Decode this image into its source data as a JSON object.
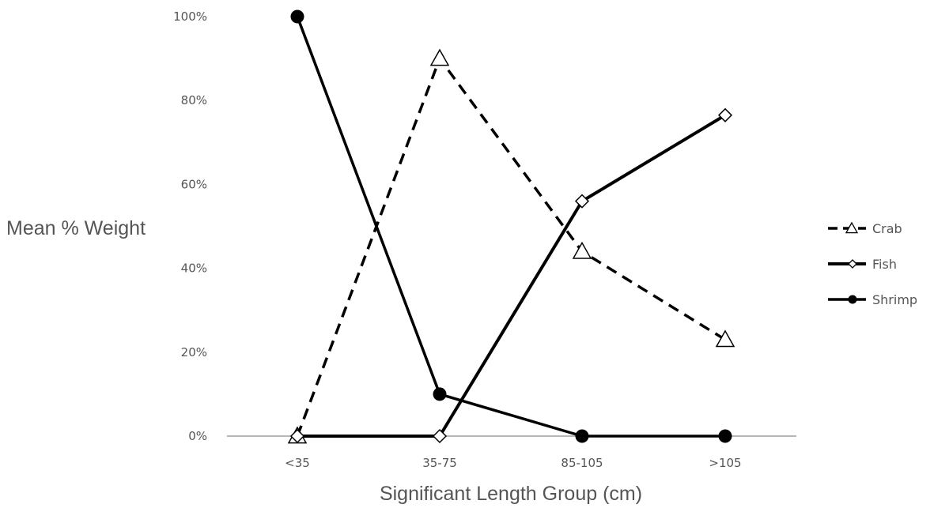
{
  "chart_data": {
    "type": "line",
    "title": "",
    "xlabel": "Significant Length Group (cm)",
    "ylabel": "Mean % Weight",
    "categories": [
      "<35",
      "35-75",
      "85-105",
      ">105"
    ],
    "ylim": [
      0,
      100
    ],
    "y_ticks": [
      0,
      20,
      40,
      60,
      80,
      100
    ],
    "y_tick_labels": [
      "0%",
      "20%",
      "40%",
      "60%",
      "80%",
      "100%"
    ],
    "grid": false,
    "legend_position": "right",
    "series": [
      {
        "name": "Crab",
        "values": [
          0,
          90,
          44,
          23
        ],
        "line_style": "dashed",
        "marker": "open-triangle",
        "color": "#000000"
      },
      {
        "name": "Fish",
        "values": [
          0,
          0,
          56,
          76.5
        ],
        "line_style": "solid-thick",
        "marker": "open-diamond",
        "color": "#000000"
      },
      {
        "name": "Shrimp",
        "values": [
          100,
          10,
          0,
          0
        ],
        "line_style": "solid",
        "marker": "filled-circle",
        "color": "#000000"
      }
    ]
  }
}
